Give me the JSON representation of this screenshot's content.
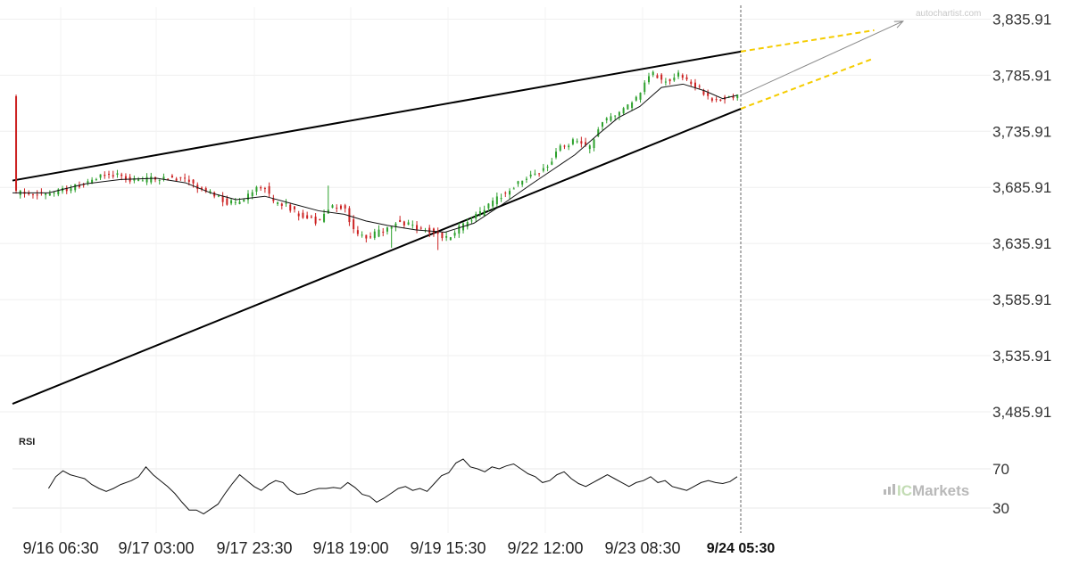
{
  "chart_data": {
    "type": "candlestick",
    "watermark": "autochartist.com",
    "brand": "ICMarkets",
    "brand_prefix": "IC",
    "brand_suffix": "Markets",
    "x_tick_labels": [
      "9/16 06:30",
      "9/17 03:00",
      "9/17 23:30",
      "9/18 19:00",
      "9/19 15:30",
      "9/22 12:00",
      "9/23 08:30"
    ],
    "current_time_label": "9/24 05:30",
    "y_tick_labels": [
      "3,835.91",
      "3,785.91",
      "3,735.91",
      "3,685.91",
      "3,635.91",
      "3,585.91",
      "3,535.91",
      "3,485.91"
    ],
    "y_ticks": [
      3835.91,
      3785.91,
      3735.91,
      3685.91,
      3635.91,
      3585.91,
      3535.91,
      3485.91
    ],
    "ylim": [
      3470,
      3845
    ],
    "bar_count": 172,
    "up_color": "#2ca02c",
    "down_color": "#cc2222",
    "close_path": [
      [
        0,
        3681
      ],
      [
        8,
        3679
      ],
      [
        15,
        3684
      ],
      [
        22,
        3692
      ],
      [
        27,
        3699
      ],
      [
        32,
        3692
      ],
      [
        38,
        3693
      ],
      [
        44,
        3695
      ],
      [
        48,
        3693
      ],
      [
        52,
        3685
      ],
      [
        55,
        3680
      ],
      [
        60,
        3672
      ],
      [
        64,
        3675
      ],
      [
        67,
        3683
      ],
      [
        70,
        3687
      ],
      [
        72,
        3672
      ],
      [
        76,
        3670
      ],
      [
        80,
        3661
      ],
      [
        85,
        3655
      ],
      [
        88,
        3669
      ],
      [
        92,
        3668
      ],
      [
        95,
        3645
      ],
      [
        99,
        3642
      ],
      [
        103,
        3648
      ],
      [
        107,
        3656
      ],
      [
        113,
        3649
      ],
      [
        118,
        3645
      ],
      [
        120,
        3640
      ],
      [
        125,
        3652
      ],
      [
        130,
        3663
      ],
      [
        134,
        3675
      ],
      [
        138,
        3685
      ],
      [
        143,
        3696
      ],
      [
        148,
        3704
      ],
      [
        152,
        3722
      ],
      [
        156,
        3728
      ],
      [
        160,
        3720
      ],
      [
        163,
        3742
      ],
      [
        166,
        3749
      ],
      [
        169,
        3754
      ],
      [
        173,
        3765
      ],
      [
        177,
        3788
      ],
      [
        181,
        3780
      ],
      [
        185,
        3787
      ],
      [
        189,
        3778
      ],
      [
        193,
        3766
      ],
      [
        197,
        3764
      ],
      [
        201,
        3768
      ]
    ],
    "moving_average": [
      [
        0,
        3681
      ],
      [
        10,
        3681
      ],
      [
        20,
        3689
      ],
      [
        30,
        3693
      ],
      [
        40,
        3694
      ],
      [
        48,
        3690
      ],
      [
        55,
        3681
      ],
      [
        62,
        3675
      ],
      [
        70,
        3678
      ],
      [
        78,
        3671
      ],
      [
        85,
        3665
      ],
      [
        92,
        3662
      ],
      [
        98,
        3656
      ],
      [
        104,
        3652
      ],
      [
        112,
        3648
      ],
      [
        120,
        3646
      ],
      [
        128,
        3654
      ],
      [
        136,
        3671
      ],
      [
        144,
        3689
      ],
      [
        150,
        3702
      ],
      [
        156,
        3715
      ],
      [
        162,
        3732
      ],
      [
        168,
        3748
      ],
      [
        174,
        3758
      ],
      [
        180,
        3775
      ],
      [
        186,
        3778
      ],
      [
        192,
        3772
      ],
      [
        197,
        3765
      ],
      [
        201,
        3768
      ]
    ],
    "trend_lines": [
      {
        "name": "resistance",
        "from": [
          0,
          3692
        ],
        "to": [
          202,
          3807
        ]
      },
      {
        "name": "support",
        "from": [
          0,
          3493
        ],
        "to": [
          202,
          3756
        ]
      }
    ],
    "projection_lines": [
      {
        "name": "upper-projection",
        "from": [
          202,
          3807
        ],
        "to": [
          239,
          3826
        ]
      },
      {
        "name": "lower-projection",
        "from": [
          202,
          3756
        ],
        "to": [
          239,
          3801
        ]
      }
    ],
    "projection_color": "#f5cc00",
    "forecast_arrow": {
      "from": [
        202,
        3768
      ],
      "to": [
        247,
        3834
      ]
    },
    "rsi": {
      "label": "RSI",
      "y_tick_labels": [
        "70",
        "30"
      ],
      "ylim": [
        18,
        82
      ],
      "ticks": [
        70,
        30
      ],
      "path": [
        [
          10,
          50
        ],
        [
          12,
          62
        ],
        [
          14,
          68
        ],
        [
          16,
          64
        ],
        [
          18,
          62
        ],
        [
          20,
          60
        ],
        [
          22,
          54
        ],
        [
          24,
          50
        ],
        [
          26,
          47
        ],
        [
          28,
          50
        ],
        [
          30,
          54
        ],
        [
          33,
          58
        ],
        [
          35,
          62
        ],
        [
          37,
          72
        ],
        [
          39,
          64
        ],
        [
          41,
          58
        ],
        [
          43,
          52
        ],
        [
          45,
          45
        ],
        [
          47,
          36
        ],
        [
          49,
          28
        ],
        [
          51,
          28
        ],
        [
          53,
          24
        ],
        [
          55,
          29
        ],
        [
          57,
          34
        ],
        [
          59,
          45
        ],
        [
          61,
          55
        ],
        [
          63,
          64
        ],
        [
          65,
          58
        ],
        [
          67,
          52
        ],
        [
          69,
          48
        ],
        [
          71,
          54
        ],
        [
          73,
          58
        ],
        [
          75,
          56
        ],
        [
          77,
          48
        ],
        [
          79,
          44
        ],
        [
          81,
          45
        ],
        [
          83,
          48
        ],
        [
          85,
          50
        ],
        [
          87,
          50
        ],
        [
          89,
          51
        ],
        [
          91,
          50
        ],
        [
          93,
          56
        ],
        [
          95,
          51
        ],
        [
          97,
          44
        ],
        [
          99,
          42
        ],
        [
          101,
          36
        ],
        [
          103,
          40
        ],
        [
          105,
          45
        ],
        [
          107,
          50
        ],
        [
          109,
          52
        ],
        [
          111,
          48
        ],
        [
          113,
          50
        ],
        [
          115,
          47
        ],
        [
          117,
          55
        ],
        [
          119,
          63
        ],
        [
          121,
          66
        ],
        [
          123,
          76
        ],
        [
          125,
          80
        ],
        [
          127,
          72
        ],
        [
          129,
          70
        ],
        [
          131,
          67
        ],
        [
          133,
          72
        ],
        [
          135,
          70
        ],
        [
          137,
          73
        ],
        [
          139,
          75
        ],
        [
          141,
          70
        ],
        [
          143,
          65
        ],
        [
          145,
          62
        ],
        [
          147,
          56
        ],
        [
          149,
          58
        ],
        [
          151,
          64
        ],
        [
          153,
          67
        ],
        [
          155,
          60
        ],
        [
          157,
          55
        ],
        [
          159,
          52
        ],
        [
          161,
          56
        ],
        [
          163,
          60
        ],
        [
          165,
          64
        ],
        [
          167,
          60
        ],
        [
          169,
          56
        ],
        [
          171,
          52
        ],
        [
          173,
          56
        ],
        [
          175,
          58
        ],
        [
          177,
          62
        ],
        [
          179,
          56
        ],
        [
          181,
          58
        ],
        [
          183,
          52
        ],
        [
          185,
          50
        ],
        [
          187,
          48
        ],
        [
          189,
          52
        ],
        [
          191,
          56
        ],
        [
          193,
          58
        ],
        [
          195,
          56
        ],
        [
          197,
          55
        ],
        [
          199,
          57
        ],
        [
          201,
          62
        ]
      ]
    }
  }
}
